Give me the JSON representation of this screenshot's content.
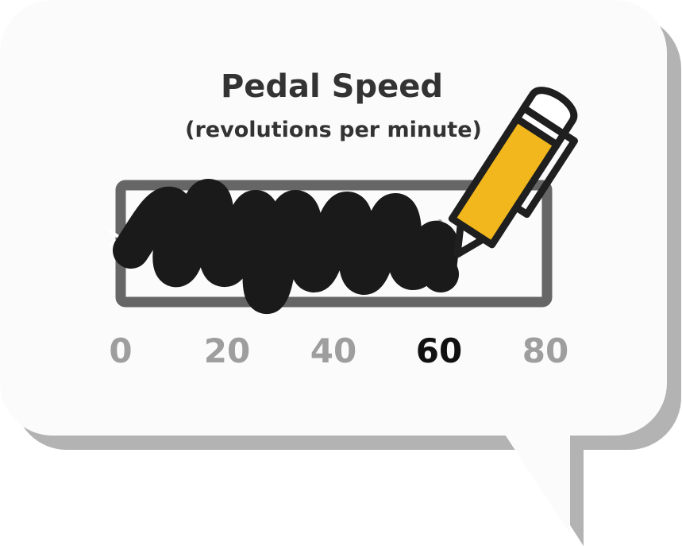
{
  "title": "Pedal Speed",
  "subtitle": "(revolutions per minute)",
  "scale": {
    "min": 0,
    "max": 80,
    "ticks": [
      "0",
      "20",
      "40",
      "60",
      "80"
    ],
    "highlighted_tick": "60",
    "scribbled_to": 0.73
  },
  "colors": {
    "bubble_fill": "#fbfbfb",
    "bubble_shadow": "#b3b3b3",
    "gauge_frame": "#666666",
    "scribble": "#1a1a1a",
    "tick_muted": "#9e9e9e",
    "tick_active": "#111111",
    "pencil_body": "#f2b71c",
    "pencil_outline": "#1f1f1f"
  },
  "icons": [
    "pencil-icon",
    "arrow-marker-icon"
  ]
}
